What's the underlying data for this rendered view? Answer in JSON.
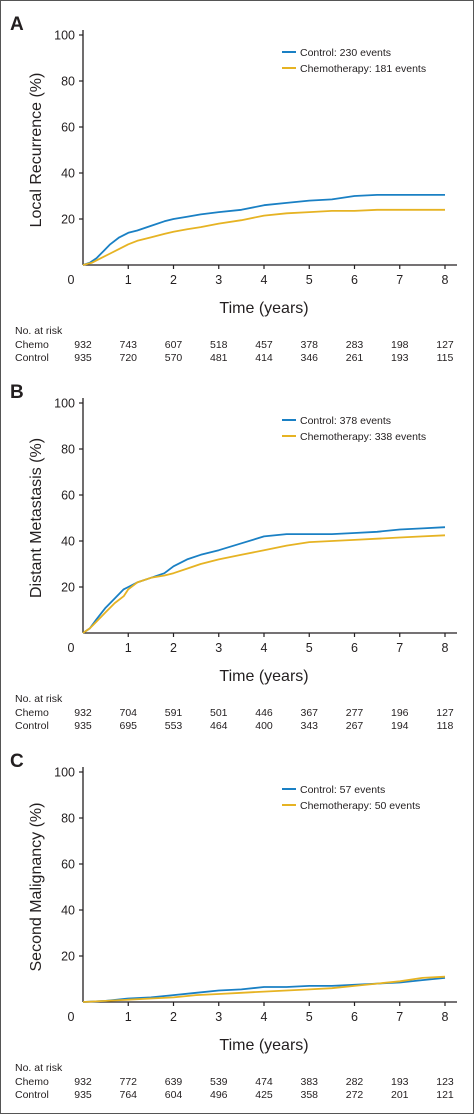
{
  "chart_data": [
    {
      "type": "line",
      "panel": "A",
      "ylabel": "Local Recurrence (%)",
      "xlabel": "Time (years)",
      "xlim": [
        0,
        8
      ],
      "ylim": [
        0,
        100
      ],
      "xticks": [
        "0",
        "1",
        "2",
        "3",
        "4",
        "5",
        "6",
        "7",
        "8"
      ],
      "yticks": [
        "20",
        "40",
        "60",
        "80",
        "100"
      ],
      "legend_position": "top-right",
      "series": [
        {
          "name": "Control: 230 events",
          "color": "#1a80c4",
          "x": [
            0,
            0.15,
            0.3,
            0.45,
            0.6,
            0.8,
            1.0,
            1.2,
            1.5,
            1.8,
            2.0,
            2.3,
            2.6,
            3.0,
            3.5,
            4.0,
            4.5,
            5.0,
            5.5,
            6.0,
            6.5,
            7.0,
            7.5,
            8.0
          ],
          "y": [
            0,
            1,
            3,
            6,
            9,
            12,
            14,
            15,
            17,
            19,
            20,
            21,
            22,
            23,
            24,
            26,
            27,
            28,
            28.5,
            30,
            30.5,
            30.5,
            30.5,
            30.5
          ]
        },
        {
          "name": "Chemotherapy: 181 events",
          "color": "#e6b323",
          "x": [
            0,
            0.2,
            0.4,
            0.6,
            0.8,
            1.0,
            1.2,
            1.5,
            1.8,
            2.0,
            2.3,
            2.6,
            3.0,
            3.5,
            4.0,
            4.5,
            5.0,
            5.5,
            6.0,
            6.5,
            7.0,
            7.5,
            8.0
          ],
          "y": [
            0,
            1,
            3,
            5,
            7,
            9,
            10.5,
            12,
            13.5,
            14.5,
            15.5,
            16.5,
            18,
            19.5,
            21.5,
            22.5,
            23,
            23.5,
            23.5,
            24,
            24,
            24,
            24
          ]
        }
      ],
      "at_risk": {
        "header": "No. at risk",
        "times": [
          0,
          1,
          2,
          3,
          4,
          5,
          6,
          7,
          8
        ],
        "rows": [
          {
            "label": "Chemo",
            "values": [
              "932",
              "743",
              "607",
              "518",
              "457",
              "378",
              "283",
              "198",
              "127"
            ]
          },
          {
            "label": "Control",
            "values": [
              "935",
              "720",
              "570",
              "481",
              "414",
              "346",
              "261",
              "193",
              "115"
            ]
          }
        ]
      }
    },
    {
      "type": "line",
      "panel": "B",
      "ylabel": "Distant Metastasis (%)",
      "xlabel": "Time (years)",
      "xlim": [
        0,
        8
      ],
      "ylim": [
        0,
        100
      ],
      "xticks": [
        "0",
        "1",
        "2",
        "3",
        "4",
        "5",
        "6",
        "7",
        "8"
      ],
      "yticks": [
        "20",
        "40",
        "60",
        "80",
        "100"
      ],
      "legend_position": "top-right",
      "series": [
        {
          "name": "Control: 378 events",
          "color": "#1a80c4",
          "x": [
            0,
            0.15,
            0.3,
            0.5,
            0.7,
            0.9,
            1.0,
            1.2,
            1.5,
            1.8,
            2.0,
            2.3,
            2.6,
            3.0,
            3.5,
            4.0,
            4.5,
            5.0,
            5.5,
            6.0,
            6.5,
            7.0,
            7.5,
            8.0
          ],
          "y": [
            0,
            2,
            6,
            11,
            15,
            19,
            20,
            22,
            24,
            26,
            29,
            32,
            34,
            36,
            39,
            42,
            43,
            43,
            43,
            43.5,
            44,
            45,
            45.5,
            46
          ]
        },
        {
          "name": "Chemotherapy: 338 events",
          "color": "#e6b323",
          "x": [
            0,
            0.15,
            0.3,
            0.5,
            0.7,
            0.9,
            1.0,
            1.2,
            1.5,
            1.8,
            2.0,
            2.3,
            2.6,
            3.0,
            3.5,
            4.0,
            4.5,
            5.0,
            5.5,
            6.0,
            6.5,
            7.0,
            7.5,
            8.0
          ],
          "y": [
            0,
            2,
            5,
            9,
            13,
            16,
            19,
            22,
            24,
            25,
            26,
            28,
            30,
            32,
            34,
            36,
            38,
            39.5,
            40,
            40.5,
            41,
            41.5,
            42,
            42.5
          ]
        }
      ],
      "at_risk": {
        "header": "No. at risk",
        "times": [
          0,
          1,
          2,
          3,
          4,
          5,
          6,
          7,
          8
        ],
        "rows": [
          {
            "label": "Chemo",
            "values": [
              "932",
              "704",
              "591",
              "501",
              "446",
              "367",
              "277",
              "196",
              "127"
            ]
          },
          {
            "label": "Control",
            "values": [
              "935",
              "695",
              "553",
              "464",
              "400",
              "343",
              "267",
              "194",
              "118"
            ]
          }
        ]
      }
    },
    {
      "type": "line",
      "panel": "C",
      "ylabel": "Second Malignancy (%)",
      "xlabel": "Time (years)",
      "xlim": [
        0,
        8
      ],
      "ylim": [
        0,
        100
      ],
      "xticks": [
        "0",
        "1",
        "2",
        "3",
        "4",
        "5",
        "6",
        "7",
        "8"
      ],
      "yticks": [
        "20",
        "40",
        "60",
        "80",
        "100"
      ],
      "legend_position": "top-right",
      "series": [
        {
          "name": "Control: 57 events",
          "color": "#1a80c4",
          "x": [
            0,
            0.5,
            1.0,
            1.5,
            2.0,
            2.5,
            3.0,
            3.5,
            4.0,
            4.5,
            5.0,
            5.5,
            6.0,
            6.5,
            7.0,
            7.5,
            8.0
          ],
          "y": [
            0,
            0.5,
            1.5,
            2,
            3,
            4,
            5,
            5.5,
            6.5,
            6.5,
            7,
            7,
            7.5,
            8,
            8.5,
            9.5,
            10.5
          ]
        },
        {
          "name": "Chemotherapy: 50 events",
          "color": "#e6b323",
          "x": [
            0,
            0.5,
            1.0,
            1.5,
            2.0,
            2.5,
            3.0,
            3.5,
            4.0,
            4.5,
            5.0,
            5.5,
            6.0,
            6.5,
            7.0,
            7.5,
            8.0
          ],
          "y": [
            0,
            0.5,
            1,
            1.5,
            2,
            3,
            3.5,
            4,
            4.5,
            5,
            5.5,
            6,
            7,
            8,
            9,
            10.5,
            11
          ]
        }
      ],
      "at_risk": {
        "header": "No. at risk",
        "times": [
          0,
          1,
          2,
          3,
          4,
          5,
          6,
          7,
          8
        ],
        "rows": [
          {
            "label": "Chemo",
            "values": [
              "932",
              "772",
              "639",
              "539",
              "474",
              "383",
              "282",
              "193",
              "123"
            ]
          },
          {
            "label": "Control",
            "values": [
              "935",
              "764",
              "604",
              "496",
              "425",
              "358",
              "272",
              "201",
              "121"
            ]
          }
        ]
      }
    }
  ]
}
